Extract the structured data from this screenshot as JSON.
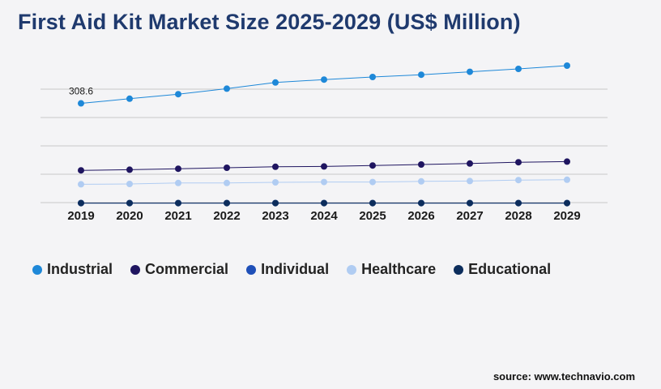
{
  "title": "First Aid Kit Market Size 2025-2029 (US$ Million)",
  "source": "source: www.technavio.com",
  "colors": {
    "background": "#f4f4f6",
    "title": "#1f3a6e",
    "grid": "#c8c8c8",
    "industrial": "#1e88d8",
    "commercial": "#1f1560",
    "individual": "#1e4fb8",
    "healthcare": "#b0ccf2",
    "educational": "#0c2d5c"
  },
  "chart_data": {
    "type": "line",
    "title": "First Aid Kit Market Size 2025-2029 (US$ Million)",
    "xlabel": "",
    "ylabel": "",
    "x": [
      "2019",
      "2020",
      "2021",
      "2022",
      "2023",
      "2024",
      "2025",
      "2026",
      "2027",
      "2028",
      "2029"
    ],
    "ylim": [
      0,
      440
    ],
    "grid": true,
    "legend_position": "bottom",
    "series": [
      {
        "name": "Industrial",
        "color": "#1e88d8",
        "values": [
          308.6,
          323,
          337,
          354,
          373,
          382,
          390,
          397,
          406,
          415,
          425
        ]
      },
      {
        "name": "Commercial",
        "color": "#1f1560",
        "values": [
          102,
          104,
          107,
          110,
          113,
          114,
          117,
          120,
          123,
          127,
          129
        ]
      },
      {
        "name": "Individual",
        "color": "#1e4fb8",
        "values": [
          1,
          1,
          1,
          1,
          1,
          1,
          1,
          1,
          1,
          1,
          1
        ]
      },
      {
        "name": "Healthcare",
        "color": "#b0ccf2",
        "values": [
          59,
          60,
          63,
          63,
          65,
          66,
          66,
          68,
          69,
          72,
          73
        ]
      },
      {
        "name": "Educational",
        "color": "#0c2d5c",
        "values": [
          1,
          1,
          1,
          1,
          1,
          1,
          1,
          1,
          1,
          1,
          1
        ]
      }
    ],
    "annotations": [
      {
        "series": "Industrial",
        "x": "2019",
        "label": "308.6"
      }
    ]
  }
}
